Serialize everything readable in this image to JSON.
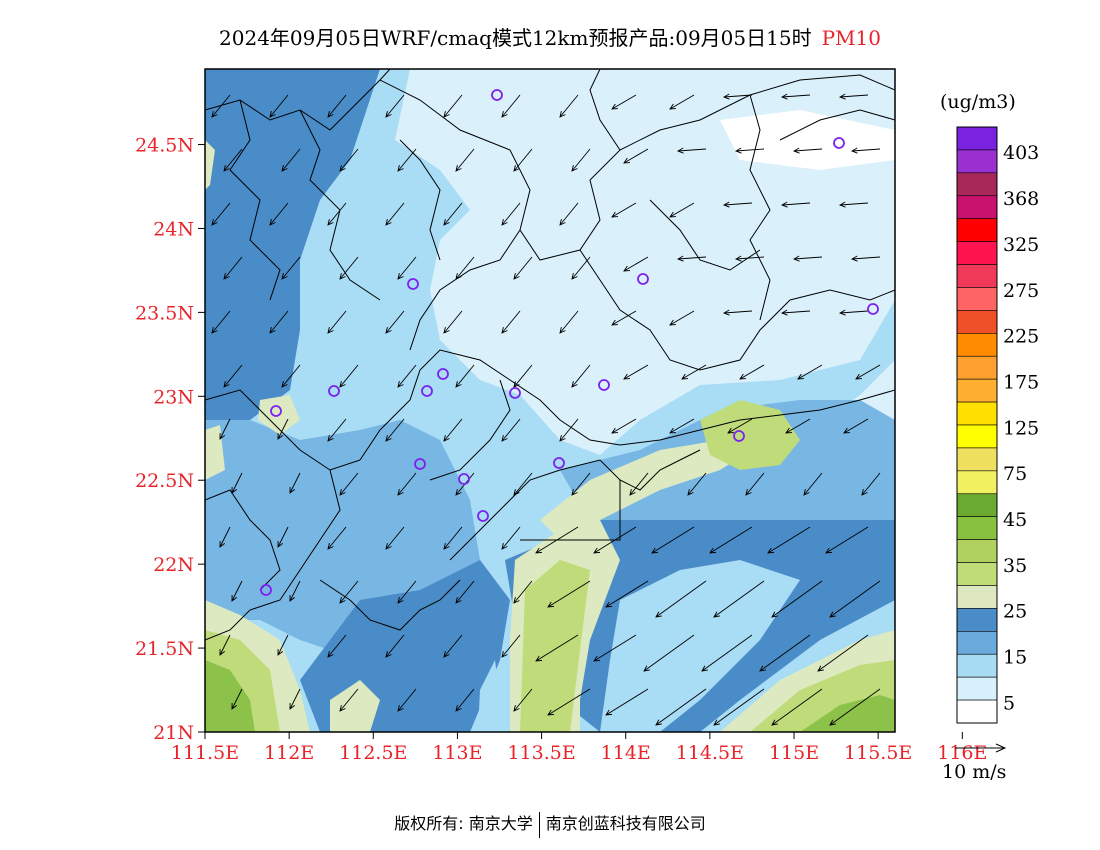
{
  "title": {
    "text": "2024年09月05日WRF/cmaq模式12km预报产品:09月05日15时",
    "pollutant": "PM10"
  },
  "map": {
    "lat_labels": [
      "24.5N",
      "24N",
      "23.5N",
      "23N",
      "22.5N",
      "22N",
      "21.5N",
      "21N"
    ],
    "lon_labels": [
      "111.5E",
      "112E",
      "112.5E",
      "113E",
      "113.5E",
      "114E",
      "114.5E",
      "115E",
      "115.5E",
      "116E"
    ],
    "lat_values": [
      24.5,
      24,
      23.5,
      23,
      22.5,
      22,
      21.5,
      21
    ],
    "lon_values": [
      111.5,
      112,
      112.5,
      113,
      113.5,
      114,
      114.5,
      115,
      115.5,
      116
    ],
    "lat_range": [
      21,
      24.95
    ],
    "lon_range": [
      111.5,
      115.6
    ],
    "colors": {
      "very_light": "#daf0fb",
      "light": "#a9dcf5",
      "mid": "#78b6e4",
      "dark": "#4a8cc8",
      "pale_green": "#dde9c0",
      "green": "#c0dc7a",
      "dark_green": "#8cc24a",
      "boundary": "#000000",
      "station_marker": "#7c22ee"
    }
  },
  "legend": {
    "unit": "(ug/m3)",
    "labels": [
      "403",
      "368",
      "325",
      "275",
      "225",
      "175",
      "125",
      "75",
      "45",
      "35",
      "25",
      "15",
      "5"
    ],
    "colors": [
      "#7b22e0",
      "#9b30d0",
      "#a8285a",
      "#c8126e",
      "#ff0000",
      "#ff1450",
      "#f03858",
      "#ff6464",
      "#f05028",
      "#ff8c00",
      "#ffa030",
      "#ffb030",
      "#ffe000",
      "#ffff00",
      "#f0e060",
      "#f0f060",
      "#6aaa30",
      "#88c040",
      "#b0d060",
      "#c0dc78",
      "#dde8c0",
      "#4a8cc8",
      "#6aaadc",
      "#a8dcf4",
      "#d8f0fc",
      "#ffffff"
    ],
    "wind_reference": "10 m/s"
  },
  "footer": {
    "copyright": "版权所有: 南京大学",
    "company": "南京创蓝科技有限公司"
  }
}
